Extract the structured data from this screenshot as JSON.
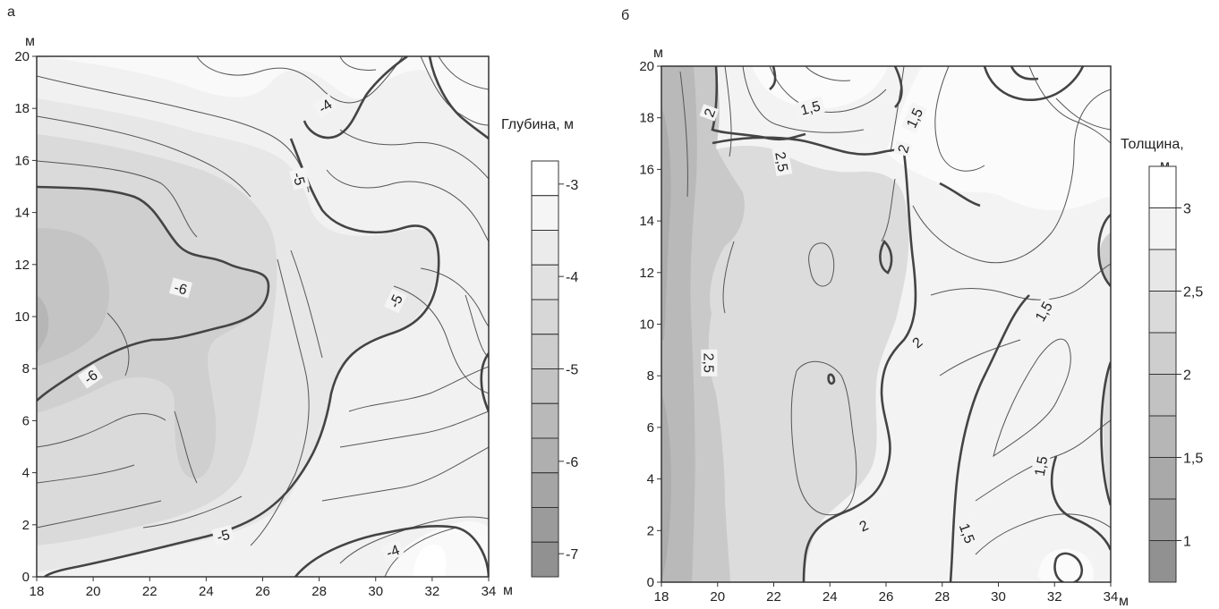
{
  "chart_data": [
    {
      "type": "heatmap",
      "panel_label": "а",
      "y_unit": "м",
      "x_unit": "м",
      "xlim": [
        18,
        34
      ],
      "ylim": [
        0,
        20
      ],
      "x_ticks": [
        "18",
        "20",
        "22",
        "24",
        "26",
        "28",
        "30",
        "32",
        "34"
      ],
      "y_ticks": [
        "0",
        "2",
        "4",
        "6",
        "8",
        "10",
        "12",
        "14",
        "16",
        "18",
        "20"
      ],
      "legend_title": [
        "Глубина, м"
      ],
      "legend_ticks": [
        "-3",
        "-4",
        "-5",
        "-6",
        "-7"
      ],
      "legend_range": [
        -7.25,
        -2.75
      ],
      "legend_steps": 12,
      "contour_labels": [
        {
          "text": "-4",
          "x": 28.2,
          "y": 18.1,
          "rot": -35
        },
        {
          "text": "-5",
          "x": 27.3,
          "y": 15.3,
          "rot": 75
        },
        {
          "text": "-6",
          "x": 23.1,
          "y": 11.1,
          "rot": 15
        },
        {
          "text": "-5",
          "x": 30.7,
          "y": 10.6,
          "rot": -65
        },
        {
          "text": "-6",
          "x": 19.9,
          "y": 7.7,
          "rot": -35
        },
        {
          "text": "-5",
          "x": 24.6,
          "y": 1.6,
          "rot": -15
        },
        {
          "text": "-4",
          "x": 30.6,
          "y": 1.0,
          "rot": -20
        }
      ]
    },
    {
      "type": "heatmap",
      "panel_label": "б",
      "y_unit": "м",
      "x_unit": "м",
      "xlim": [
        18,
        34
      ],
      "ylim": [
        0,
        20
      ],
      "x_ticks": [
        "18",
        "20",
        "22",
        "24",
        "26",
        "28",
        "30",
        "32",
        "34"
      ],
      "y_ticks": [
        "0",
        "2",
        "4",
        "6",
        "8",
        "10",
        "12",
        "14",
        "16",
        "18",
        "20"
      ],
      "legend_title": [
        "Толщина,",
        "м"
      ],
      "legend_ticks": [
        "3",
        "2,5",
        "2",
        "1,5",
        "1"
      ],
      "legend_range": [
        0.75,
        3.25
      ],
      "legend_steps": 10,
      "contour_labels": [
        {
          "text": "2",
          "x": 19.7,
          "y": 18.2,
          "rot": -70
        },
        {
          "text": "1,5",
          "x": 23.3,
          "y": 18.4,
          "rot": -15
        },
        {
          "text": "1,5",
          "x": 27.0,
          "y": 18.0,
          "rot": -65
        },
        {
          "text": "2,5",
          "x": 22.3,
          "y": 16.3,
          "rot": 80
        },
        {
          "text": "2",
          "x": 26.6,
          "y": 16.8,
          "rot": -75
        },
        {
          "text": "1,5",
          "x": 31.6,
          "y": 10.5,
          "rot": -60
        },
        {
          "text": "2",
          "x": 27.1,
          "y": 9.3,
          "rot": -40
        },
        {
          "text": "2,5",
          "x": 19.7,
          "y": 8.5,
          "rot": 90
        },
        {
          "text": "2",
          "x": 25.2,
          "y": 2.2,
          "rot": -25
        },
        {
          "text": "1,5",
          "x": 28.9,
          "y": 1.9,
          "rot": 70
        },
        {
          "text": "1,5",
          "x": 31.5,
          "y": 4.5,
          "rot": -80
        }
      ]
    }
  ]
}
